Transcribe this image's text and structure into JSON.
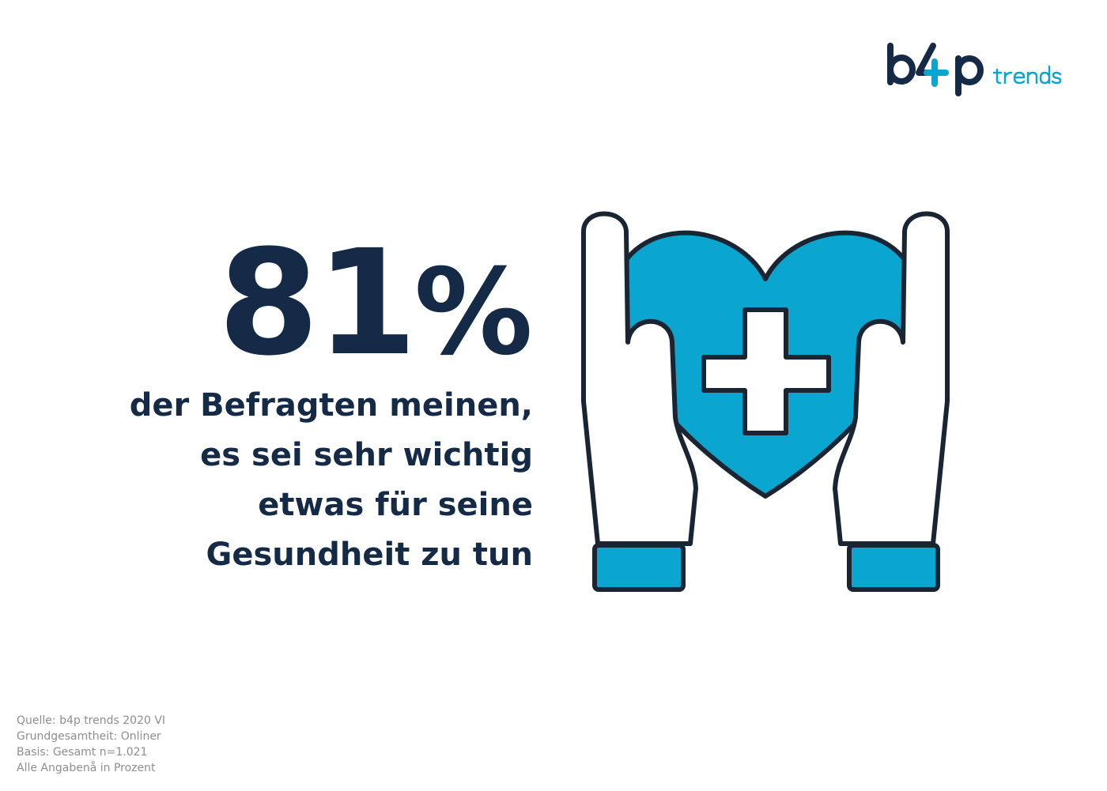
{
  "brand": {
    "logo_text": "b4p trends",
    "colors": {
      "navy": "#152a47",
      "cyan": "#0ba6cf",
      "outline": "#1a2533"
    }
  },
  "headline": {
    "stat_number": "81",
    "stat_unit": "%",
    "statement_lines": [
      "der Befragten meinen,",
      "es sei sehr wichtig",
      "etwas für seine",
      "Gesundheit zu tun"
    ]
  },
  "illustration": {
    "icon": "hands-holding-heart-with-cross-icon"
  },
  "footnote": {
    "lines": [
      "Quelle: b4p trends 2020 VI",
      "Grundgesamtheit: Onliner",
      "Basis: Gesamt n=1.021",
      "Alle Angabenå in Prozent"
    ]
  }
}
